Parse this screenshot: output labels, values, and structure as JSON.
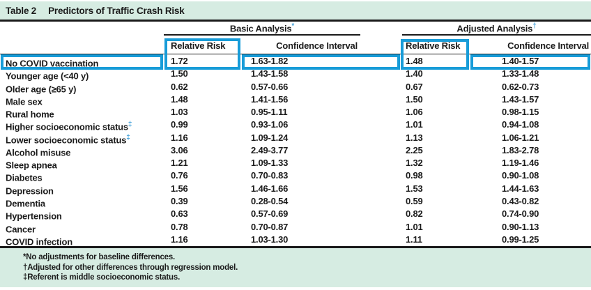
{
  "title": {
    "label": "Table 2",
    "text": "Predictors of Traffic Crash Risk"
  },
  "groups": [
    {
      "name": "Basic Analysis",
      "marker": "*"
    },
    {
      "name": "Adjusted Analysis",
      "marker": "†"
    }
  ],
  "columns": {
    "relative_risk": "Relative Risk",
    "confidence_interval": "Confidence Interval"
  },
  "table": {
    "rows": [
      {
        "label": "No COVID vaccination",
        "marker": "",
        "basic_rr": "1.72",
        "basic_ci": "1.63-1.82",
        "adj_rr": "1.48",
        "adj_ci": "1.40-1.57"
      },
      {
        "label": "Younger age (<40 y)",
        "marker": "",
        "basic_rr": "1.50",
        "basic_ci": "1.43-1.58",
        "adj_rr": "1.40",
        "adj_ci": "1.33-1.48"
      },
      {
        "label": "Older age (≥65 y)",
        "marker": "",
        "basic_rr": "0.62",
        "basic_ci": "0.57-0.66",
        "adj_rr": "0.67",
        "adj_ci": "0.62-0.73"
      },
      {
        "label": "Male sex",
        "marker": "",
        "basic_rr": "1.48",
        "basic_ci": "1.41-1.56",
        "adj_rr": "1.50",
        "adj_ci": "1.43-1.57"
      },
      {
        "label": "Rural home",
        "marker": "",
        "basic_rr": "1.03",
        "basic_ci": "0.95-1.11",
        "adj_rr": "1.06",
        "adj_ci": "0.98-1.15"
      },
      {
        "label": "Higher socioeconomic status",
        "marker": "‡",
        "basic_rr": "0.99",
        "basic_ci": "0.93-1.06",
        "adj_rr": "1.01",
        "adj_ci": "0.94-1.08"
      },
      {
        "label": "Lower socioeconomic status",
        "marker": "‡",
        "basic_rr": "1.16",
        "basic_ci": "1.09-1.24",
        "adj_rr": "1.13",
        "adj_ci": "1.06-1.21"
      },
      {
        "label": "Alcohol misuse",
        "marker": "",
        "basic_rr": "3.06",
        "basic_ci": "2.49-3.77",
        "adj_rr": "2.25",
        "adj_ci": "1.83-2.78"
      },
      {
        "label": "Sleep apnea",
        "marker": "",
        "basic_rr": "1.21",
        "basic_ci": "1.09-1.33",
        "adj_rr": "1.32",
        "adj_ci": "1.19-1.46"
      },
      {
        "label": "Diabetes",
        "marker": "",
        "basic_rr": "0.76",
        "basic_ci": "0.70-0.83",
        "adj_rr": "0.98",
        "adj_ci": "0.90-1.08"
      },
      {
        "label": "Depression",
        "marker": "",
        "basic_rr": "1.56",
        "basic_ci": "1.46-1.66",
        "adj_rr": "1.53",
        "adj_ci": "1.44-1.63"
      },
      {
        "label": "Dementia",
        "marker": "",
        "basic_rr": "0.39",
        "basic_ci": "0.28-0.54",
        "adj_rr": "0.59",
        "adj_ci": "0.43-0.82"
      },
      {
        "label": "Hypertension",
        "marker": "",
        "basic_rr": "0.63",
        "basic_ci": "0.57-0.69",
        "adj_rr": "0.82",
        "adj_ci": "0.74-0.90"
      },
      {
        "label": "Cancer",
        "marker": "",
        "basic_rr": "0.78",
        "basic_ci": "0.70-0.87",
        "adj_rr": "1.01",
        "adj_ci": "0.90-1.13"
      },
      {
        "label": "COVID infection",
        "marker": "",
        "basic_rr": "1.16",
        "basic_ci": "1.03-1.30",
        "adj_rr": "1.11",
        "adj_ci": "0.99-1.25"
      }
    ]
  },
  "footnotes": [
    "*No adjustments for baseline differences.",
    "†Adjusted for other differences through regression model.",
    "‡Referent is middle socioeconomic status."
  ],
  "annotations": {
    "highlighted_row": "No COVID vaccination",
    "highlighted_columns": [
      "Relative Risk (Basic Analysis)",
      "Relative Risk (Adjusted Analysis)"
    ]
  },
  "colors": {
    "highlight_blue": "#189cd8",
    "header_green": "#d6ece2",
    "marker_blue": "#3f9fd8",
    "text": "#1b1b1b"
  }
}
